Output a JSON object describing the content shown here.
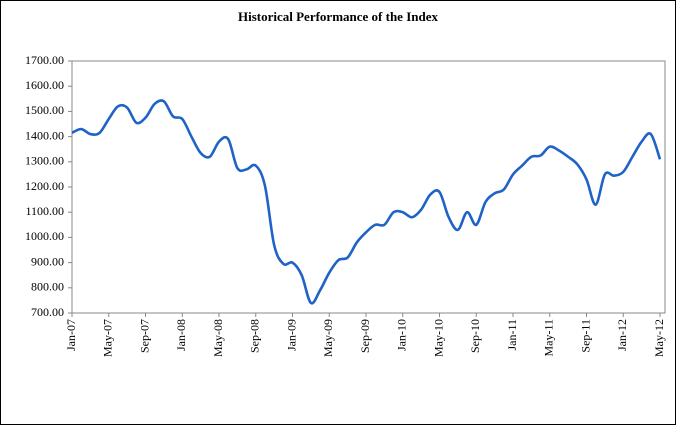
{
  "chart_data": {
    "type": "line",
    "title": "Historical Performance of the Index",
    "categories": [
      "Jan-07",
      null,
      null,
      null,
      "May-07",
      null,
      null,
      null,
      "Sep-07",
      null,
      null,
      null,
      "Jan-08",
      null,
      null,
      null,
      "May-08",
      null,
      null,
      null,
      "Sep-08",
      null,
      null,
      null,
      "Jan-09",
      null,
      null,
      null,
      "May-09",
      null,
      null,
      null,
      "Sep-09",
      null,
      null,
      null,
      "Jan-10",
      null,
      null,
      null,
      "May-10",
      null,
      null,
      null,
      "Sep-10",
      null,
      null,
      null,
      "Jan-11",
      null,
      null,
      null,
      "May-11",
      null,
      null,
      null,
      "Sep-11",
      null,
      null,
      null,
      "Jan-12",
      null,
      null,
      null,
      "May-12"
    ],
    "series": [
      {
        "color": "#1f63c6",
        "values": [
          1415,
          1430,
          1410,
          1415,
          1470,
          1520,
          1515,
          1455,
          1475,
          1530,
          1540,
          1480,
          1470,
          1400,
          1335,
          1320,
          1380,
          1390,
          1275,
          1270,
          1285,
          1205,
          970,
          895,
          900,
          850,
          740,
          790,
          860,
          910,
          920,
          980,
          1020,
          1050,
          1050,
          1100,
          1100,
          1080,
          1110,
          1170,
          1180,
          1080,
          1030,
          1100,
          1050,
          1140,
          1175,
          1190,
          1250,
          1285,
          1320,
          1325,
          1360,
          1345,
          1320,
          1290,
          1230,
          1130,
          1250,
          1245,
          1260,
          1320,
          1380,
          1410,
          1310
        ]
      }
    ],
    "ylim": [
      700,
      1700
    ],
    "yticks": [
      {
        "value": 700,
        "label": "700.00"
      },
      {
        "value": 800,
        "label": "800.00"
      },
      {
        "value": 900,
        "label": "900.00"
      },
      {
        "value": 1000,
        "label": "1000.00"
      },
      {
        "value": 1100,
        "label": "1100.00"
      },
      {
        "value": 1200,
        "label": "1200.00"
      },
      {
        "value": 1300,
        "label": "1300.00"
      },
      {
        "value": 1400,
        "label": "1400.00"
      },
      {
        "value": 1500,
        "label": "1500.00"
      },
      {
        "value": 1600,
        "label": "1600.00"
      },
      {
        "value": 1700,
        "label": "1700.00"
      }
    ],
    "grid": false
  }
}
